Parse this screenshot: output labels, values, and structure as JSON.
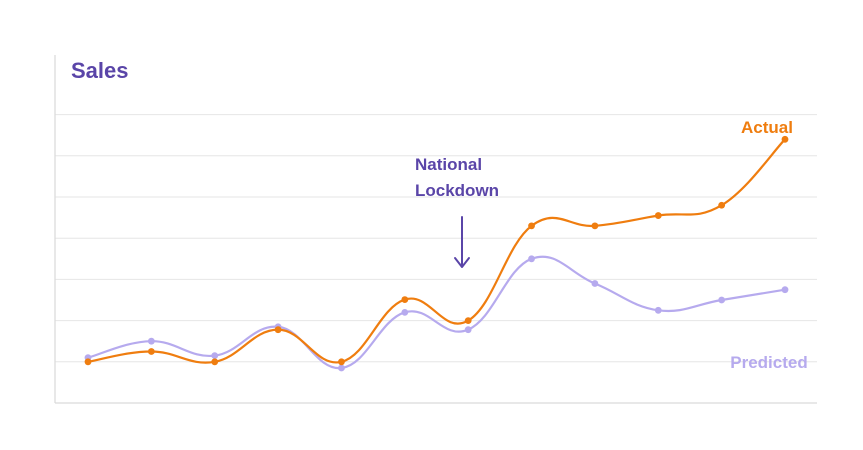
{
  "chart_data": {
    "type": "line",
    "title": "Sales",
    "xlabel": "",
    "ylabel": "",
    "x": [
      1,
      2,
      3,
      4,
      5,
      6,
      7,
      8,
      9,
      10,
      11,
      12
    ],
    "ylim": [
      0,
      7
    ],
    "grid": true,
    "grid_lines": [
      1,
      2,
      3,
      4,
      5,
      6,
      7
    ],
    "series": [
      {
        "name": "Actual",
        "color": "#ef7d0f",
        "values": [
          1.0,
          1.25,
          1.0,
          1.78,
          1.0,
          2.51,
          2.0,
          4.3,
          4.3,
          4.55,
          4.8,
          6.4
        ]
      },
      {
        "name": "Predicted",
        "color": "#b6aaee",
        "values": [
          1.1,
          1.5,
          1.15,
          1.85,
          0.85,
          2.2,
          1.78,
          3.5,
          2.9,
          2.25,
          2.5,
          2.75
        ]
      }
    ],
    "annotations": [
      {
        "text_lines": [
          "National",
          "Lockdown"
        ],
        "x": 7,
        "color": "#5a45a8",
        "arrow": "down"
      }
    ],
    "colors": {
      "title": "#5a45a8",
      "grid": "#e6e6e6",
      "axis": "#d9d9d9"
    }
  }
}
